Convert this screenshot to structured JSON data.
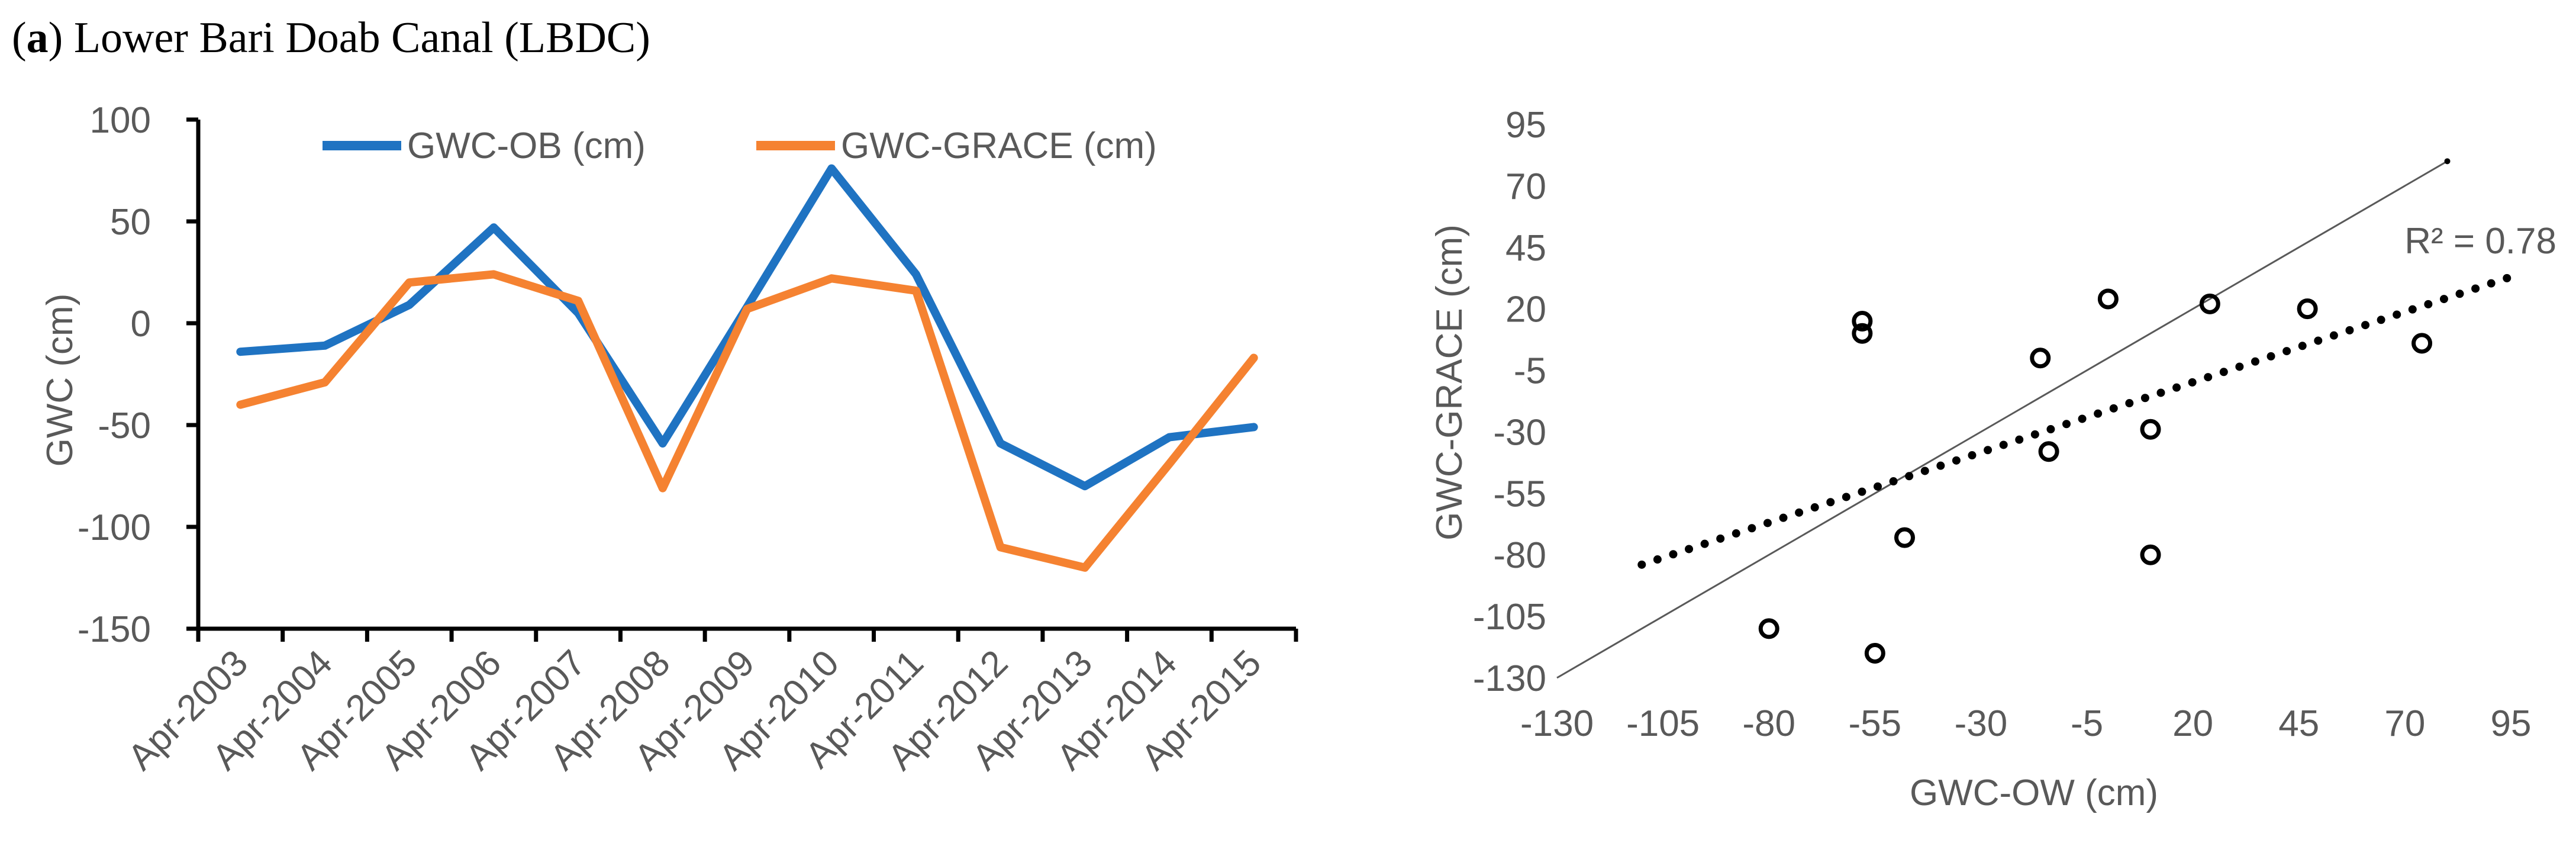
{
  "panel": {
    "letter": "a",
    "title": "Lower Bari Doab Canal (LBDC)"
  },
  "colors": {
    "ob": "#1f73c2",
    "grace": "#f58231",
    "text": "#595959",
    "axis": "#000000"
  },
  "chart_data": [
    {
      "type": "line",
      "ylabel": "GWC (cm)",
      "xlabel": "",
      "ylim": [
        -150,
        100
      ],
      "yticks": [
        100,
        50,
        0,
        -50,
        -100,
        -150
      ],
      "categories": [
        "Apr-2003",
        "Apr-2004",
        "Apr-2005",
        "Apr-2006",
        "Apr-2007",
        "Apr-2008",
        "Apr-2009",
        "Apr-2010",
        "Apr-2011",
        "Apr-2012",
        "Apr-2013",
        "Apr-2014",
        "Apr-2015"
      ],
      "legend_position": "top",
      "series": [
        {
          "name": "GWC-OB (cm)",
          "color": "#1f73c2",
          "values": [
            -14,
            -11,
            9,
            47,
            5,
            -59,
            8,
            76,
            24,
            -59,
            -80,
            -56,
            -51
          ]
        },
        {
          "name": "GWC-GRACE (cm)",
          "color": "#f58231",
          "values": [
            -40,
            -29,
            20,
            24,
            11,
            -81,
            7,
            22,
            16,
            -110,
            -120,
            -69,
            -17
          ]
        }
      ]
    },
    {
      "type": "scatter",
      "xlabel": "GWC-OW (cm)",
      "ylabel": "GWC-GRACE (cm)",
      "xlim": [
        -130,
        95
      ],
      "ylim": [
        -130,
        95
      ],
      "xticks": [
        -130,
        -105,
        -80,
        -55,
        -30,
        -5,
        20,
        45,
        70,
        95
      ],
      "yticks": [
        95,
        70,
        45,
        20,
        -5,
        -30,
        -55,
        -80,
        -105,
        -130
      ],
      "points": [
        {
          "x": -58,
          "y": 15
        },
        {
          "x": -58,
          "y": 10
        },
        {
          "x": -48,
          "y": -73
        },
        {
          "x": -55,
          "y": -120
        },
        {
          "x": -80,
          "y": -110
        },
        {
          "x": -14,
          "y": -38
        },
        {
          "x": -16,
          "y": 0
        },
        {
          "x": 0,
          "y": 24
        },
        {
          "x": 10,
          "y": -29
        },
        {
          "x": 10,
          "y": -80
        },
        {
          "x": 24,
          "y": 22
        },
        {
          "x": 47,
          "y": 20
        },
        {
          "x": 74,
          "y": 6
        }
      ],
      "one_to_one_line": {
        "from": [
          -130,
          -130
        ],
        "to": [
          80,
          80
        ]
      },
      "trendline": {
        "from": [
          -110,
          -84
        ],
        "to": [
          95,
          33
        ],
        "style": "dotted"
      },
      "annotation": "R² = 0.78"
    }
  ]
}
